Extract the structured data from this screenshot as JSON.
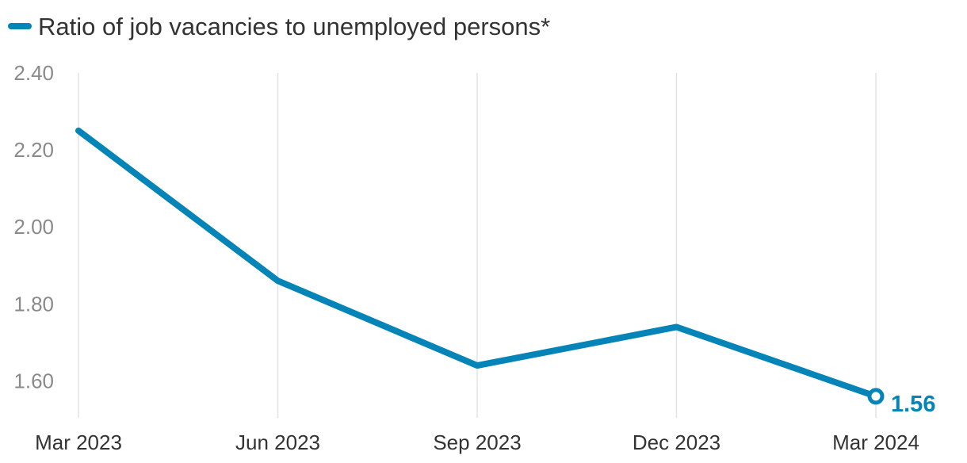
{
  "chart_data": {
    "type": "line",
    "title": "",
    "xlabel": "",
    "ylabel": "",
    "categories": [
      "Mar 2023",
      "Jun 2023",
      "Sep 2023",
      "Dec 2023",
      "Mar 2024"
    ],
    "series": [
      {
        "name": "Ratio of job vacancies to unemployed persons*",
        "values": [
          2.25,
          1.86,
          1.64,
          1.74,
          1.56
        ],
        "color": "#0584b8"
      }
    ],
    "ylim": [
      1.5,
      2.4
    ],
    "yticks": [
      1.6,
      1.8,
      2.0,
      2.2,
      2.4
    ],
    "ytick_labels": [
      "1.60",
      "1.80",
      "2.00",
      "2.20",
      "2.40"
    ],
    "grid": "vertical",
    "legend_position": "top-left",
    "end_label": "1.56"
  },
  "colors": {
    "series": "#0584b8",
    "grid": "#e3e3e3",
    "axis_text": "#8a8a8a",
    "category_text": "#333333"
  }
}
